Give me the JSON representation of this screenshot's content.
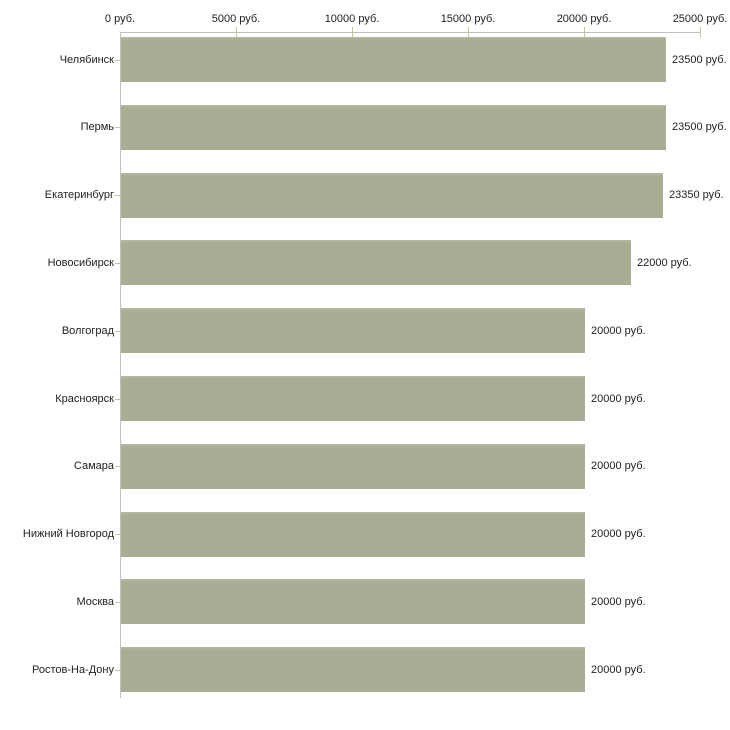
{
  "chart_data": {
    "type": "bar",
    "orientation": "horizontal",
    "title": "",
    "xlabel": "",
    "ylabel": "",
    "categories": [
      "Челябинск",
      "Пермь",
      "Екатеринбург",
      "Новосибирск",
      "Волгоград",
      "Красноярск",
      "Самара",
      "Нижний Новгород",
      "Москва",
      "Ростов-На-Дону"
    ],
    "values": [
      23500,
      23500,
      23350,
      22000,
      20000,
      20000,
      20000,
      20000,
      20000,
      20000
    ],
    "value_labels": [
      "23500 руб.",
      "23500 руб.",
      "23350 руб.",
      "22000 руб.",
      "20000 руб.",
      "20000 руб.",
      "20000 руб.",
      "20000 руб.",
      "20000 руб.",
      "20000 руб."
    ],
    "xlim": [
      0,
      25000
    ],
    "x_ticks": [
      0,
      5000,
      10000,
      15000,
      20000,
      25000
    ],
    "x_tick_labels": [
      "0 руб.",
      "5000 руб.",
      "10000 руб.",
      "15000 руб.",
      "20000 руб.",
      "25000 руб."
    ],
    "axis_position": "top",
    "grid": false,
    "legend": false,
    "colors": {
      "bar": "#a9ad93",
      "bar_top_edge": "#b6baa1",
      "axis_line": "#c0c0c0",
      "tick": "#c6c6a0",
      "text": "#222222",
      "background": "#ffffff"
    }
  }
}
